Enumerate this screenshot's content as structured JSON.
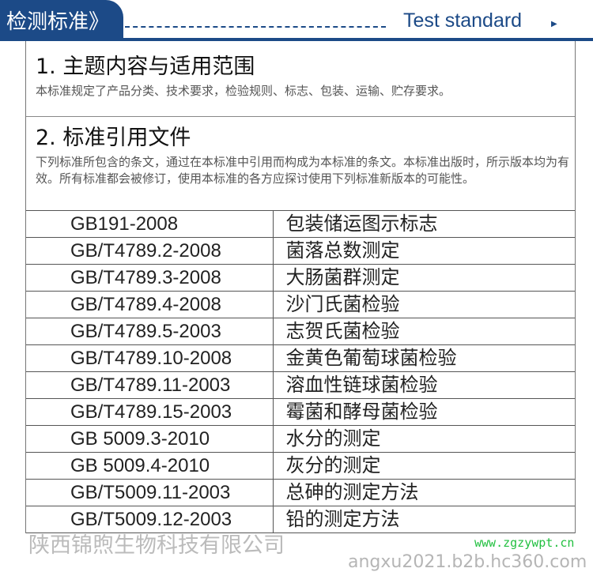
{
  "header": {
    "title_cn": "检测标准》",
    "title_en": "Test standard",
    "arrow_icon": "triangle-right-icon",
    "accent": "#1c4a87"
  },
  "section1": {
    "heading": "1. 主题内容与适用范围",
    "text": "本标准规定了产品分类、技术要求，检验规则、标志、包装、运输、贮存要求。"
  },
  "section2": {
    "heading": "2. 标准引用文件",
    "text": "下列标准所包含的条文，通过在本标准中引用而构成为本标准的条文。本标准出版时，所示版本均为有效。所有标准都会被修订，使用本标准的各方应探讨使用下列标准新版本的可能性。"
  },
  "standards": [
    {
      "code": "GB191-2008",
      "name": "包装储运图示标志"
    },
    {
      "code": "GB/T4789.2-2008",
      "name": "菌落总数测定"
    },
    {
      "code": "GB/T4789.3-2008",
      "name": "大肠菌群测定"
    },
    {
      "code": "GB/T4789.4-2008",
      "name": "沙门氏菌检验"
    },
    {
      "code": "GB/T4789.5-2003",
      "name": "志贺氏菌检验"
    },
    {
      "code": "GB/T4789.10-2008",
      "name": "金黄色葡萄球菌检验"
    },
    {
      "code": "GB/T4789.11-2003",
      "name": "溶血性链球菌检验"
    },
    {
      "code": "GB/T4789.15-2003",
      "name": "霉菌和酵母菌检验"
    },
    {
      "code": "GB 5009.3-2010",
      "name": "水分的测定"
    },
    {
      "code": "GB 5009.4-2010",
      "name": "灰分的测定"
    },
    {
      "code": "GB/T5009.11-2003",
      "name": "总砷的测定方法"
    },
    {
      "code": "GB/T5009.12-2003",
      "name": "铅的测定方法"
    }
  ],
  "watermark": {
    "company": "陕西锦煦生物科技有限公司",
    "site": "www.zgzywpt.cn",
    "url": "angxu2021.b2b.hc360.com"
  }
}
